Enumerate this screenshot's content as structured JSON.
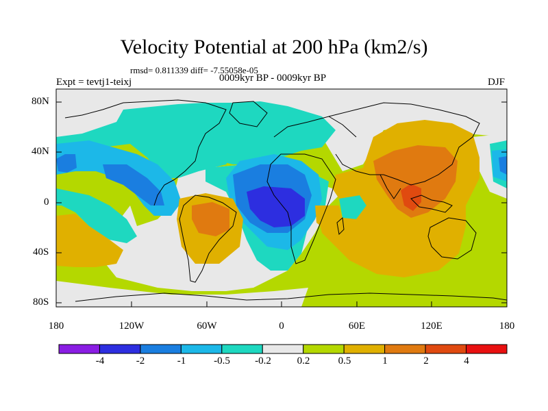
{
  "title": "Velocity Potential at 200 hPa (km2/s)",
  "stats": "rmsd= 0.811339 diff= -7.55058e-05",
  "left_label": "Expt = tevtj1-teixj",
  "center_label": "0009kyr BP - 0009kyr BP",
  "right_label": "DJF",
  "lat_labels": [
    "80N",
    "40N",
    "0",
    "40S",
    "80S"
  ],
  "lon_labels": [
    "180",
    "120W",
    "60W",
    "0",
    "60E",
    "120E",
    "180"
  ],
  "colorbar": {
    "labels": [
      "-4",
      "-2",
      "-1",
      "-0.5",
      "-0.2",
      "0.2",
      "0.5",
      "1",
      "2",
      "4"
    ],
    "colors": [
      "#8a1de3",
      "#2d2ee0",
      "#1a7ee0",
      "#1cb8e8",
      "#1ed8c0",
      "#e8e8e8",
      "#b4d800",
      "#e0b000",
      "#e07a10",
      "#e04a10",
      "#e81010"
    ]
  },
  "palette": {
    "ocean_bg": "#b4d800",
    "neutral": "#e8e8e8",
    "teal": "#1ed8c0",
    "cyan": "#1cb8e8",
    "blue": "#1a7ee0",
    "deep_blue": "#2d2ee0",
    "yellow_orange": "#e0b000",
    "orange": "#e07a10",
    "red_orange": "#e04a10"
  }
}
